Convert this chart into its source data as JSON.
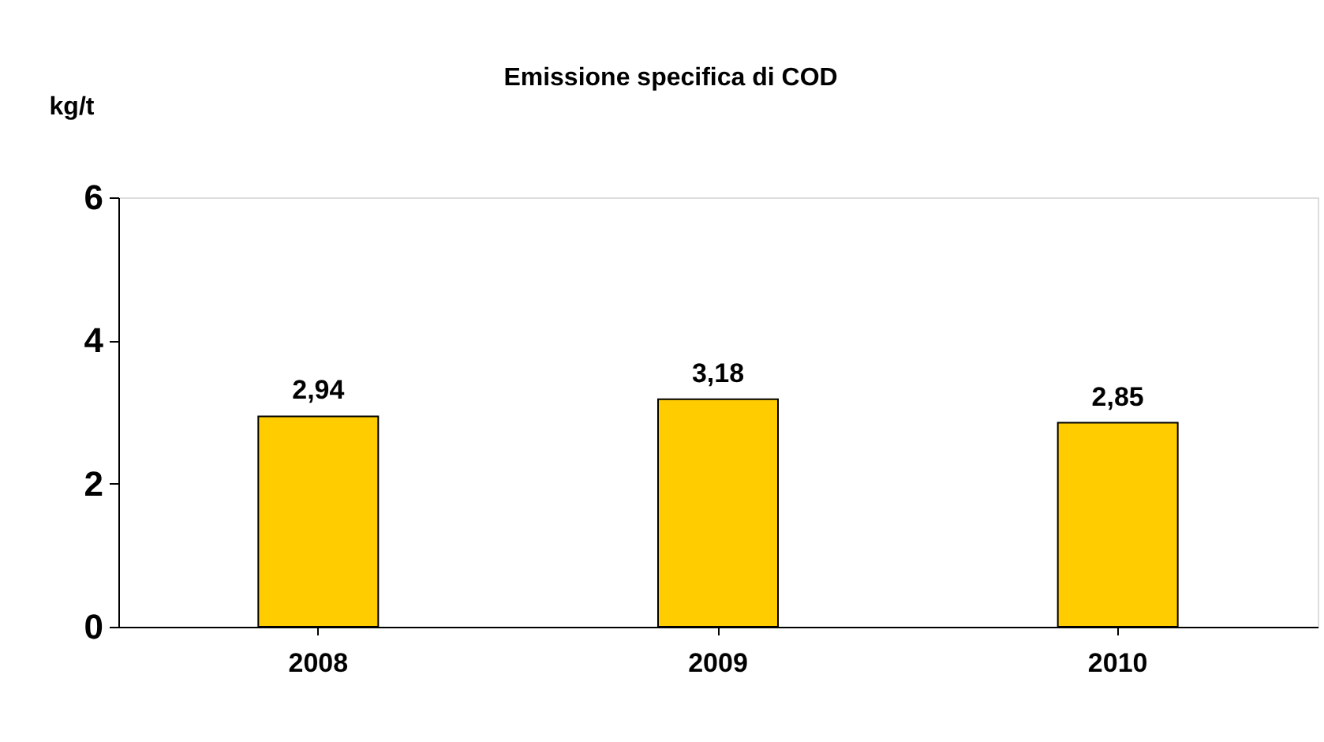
{
  "chart_data": {
    "type": "bar",
    "title": "Emissione specifica di COD",
    "ylabel": "kg/t",
    "categories": [
      "2008",
      "2009",
      "2010"
    ],
    "values": [
      2.94,
      3.18,
      2.85
    ],
    "value_labels": [
      "2,94",
      "3,18",
      "2,85"
    ],
    "color": "#ffcc00",
    "ylim": [
      0,
      6
    ],
    "yticks": [
      0,
      2,
      4,
      6
    ],
    "grid": false
  }
}
